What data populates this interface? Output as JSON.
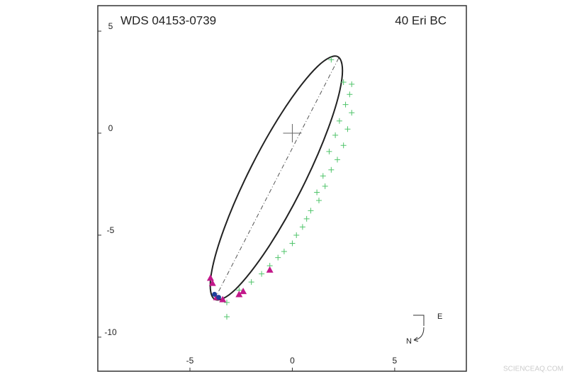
{
  "chart_data": {
    "type": "orbit",
    "title": "WDS 04153-0739",
    "subtitle": "40 Eri BC",
    "xlim": [
      -9.5,
      8.5
    ],
    "ylim": [
      -11.67,
      6.25
    ],
    "xticks": [
      -5,
      0,
      5
    ],
    "yticks": [
      5,
      0,
      -5,
      -10
    ],
    "series": [
      {
        "marker": "orbit",
        "color": "#222222",
        "x": [
          2.22,
          1.22,
          -0.32,
          -1.98,
          -3.32,
          -3.98,
          -3.78,
          -2.78,
          -1.24,
          0.42,
          1.76,
          2.42,
          2.22
        ],
        "values": [
          3.75,
          3.26,
          1.3,
          -1.59,
          -4.65,
          -7.05,
          -8.15,
          -7.66,
          -5.7,
          -2.81,
          0.25,
          2.65,
          3.75
        ]
      },
      {
        "marker": "dashdot",
        "color": "#555555",
        "x": [
          -3.8,
          2.3
        ],
        "values": [
          -8.15,
          3.75
        ]
      },
      {
        "marker": "cross",
        "color": "#4fc46a",
        "x": [
          1.9,
          2.5,
          2.9,
          2.8,
          2.6,
          2.9,
          2.3,
          2.7,
          2.1,
          2.5,
          1.8,
          2.2,
          1.9,
          1.5,
          1.6,
          1.2,
          1.3,
          0.9,
          0.7,
          0.5,
          0.2,
          0.0,
          -0.4,
          -0.7,
          -1.1,
          -1.5,
          -2.0,
          -2.6,
          -3.2,
          -3.2
        ],
        "values": [
          3.6,
          2.5,
          2.4,
          1.9,
          1.4,
          1.0,
          0.6,
          0.2,
          -0.1,
          -0.6,
          -0.9,
          -1.3,
          -1.8,
          -2.1,
          -2.6,
          -2.9,
          -3.3,
          -3.8,
          -4.2,
          -4.6,
          -5.0,
          -5.4,
          -5.8,
          -6.1,
          -6.5,
          -6.9,
          -7.3,
          -7.7,
          -8.3,
          -9.0
        ]
      },
      {
        "marker": "triangle",
        "color": "#c2188a",
        "x": [
          -4.0,
          -3.9,
          -3.7,
          -3.4,
          -2.6,
          -2.4,
          -1.1
        ],
        "values": [
          -7.1,
          -7.35,
          -8.05,
          -8.15,
          -7.9,
          -7.75,
          -6.7
        ]
      },
      {
        "marker": "dot",
        "color": "#1f3f9a",
        "x": [
          -3.8,
          -3.6
        ],
        "values": [
          -7.9,
          -8.05
        ]
      },
      {
        "marker": "center",
        "color": "#666666",
        "x": [
          0
        ],
        "values": [
          0
        ]
      }
    ],
    "compass": {
      "east": "E",
      "north": "N"
    },
    "watermark": "SCIENCEAQ.COM"
  }
}
